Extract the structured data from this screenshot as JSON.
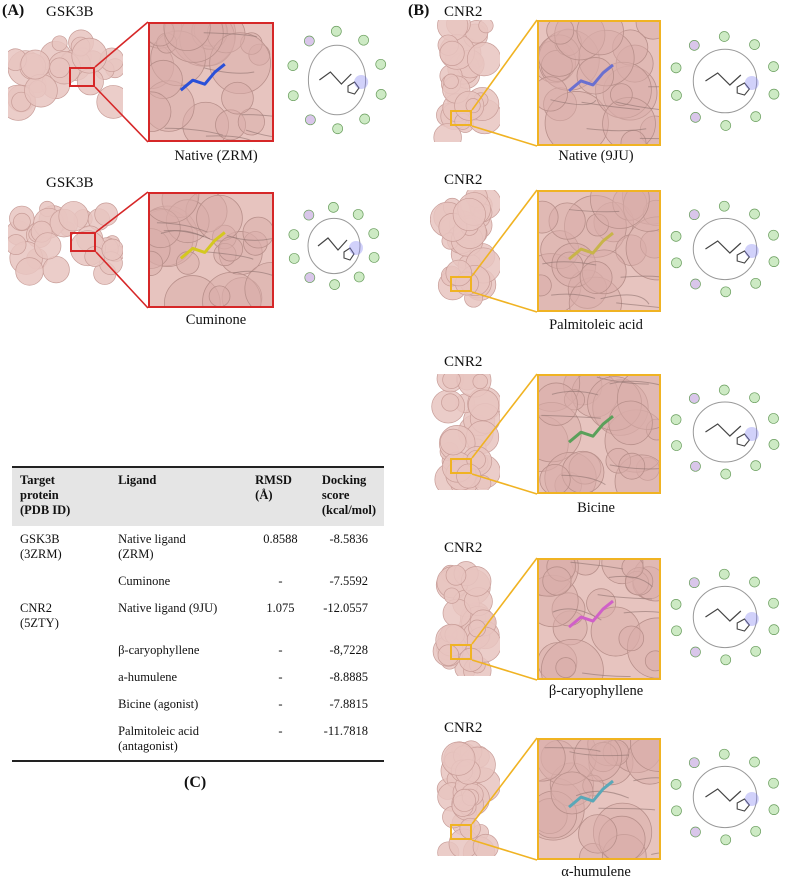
{
  "panels": {
    "A": {
      "label": "(A)",
      "items": [
        {
          "protein": "GSK3B",
          "caption": "Native (ZRM)"
        },
        {
          "protein": "GSK3B",
          "caption": "Cuminone"
        }
      ]
    },
    "B": {
      "label": "(B)",
      "items": [
        {
          "protein": "CNR2",
          "caption": "Native (9JU)"
        },
        {
          "protein": "CNR2",
          "caption": "Palmitoleic acid"
        },
        {
          "protein": "CNR2",
          "caption": "Bicine"
        },
        {
          "protein": "CNR2",
          "caption": "β-caryophyllene"
        },
        {
          "protein": "CNR2",
          "caption": "α-humulene"
        }
      ]
    },
    "C": {
      "label": "(C)"
    }
  },
  "table": {
    "headers": [
      "Target protein (PDB ID)",
      "Ligand",
      "RMSD (Å)",
      "Docking score (kcal/mol)"
    ],
    "header_lines": [
      [
        "Target",
        "protein",
        "(PDB ID)"
      ],
      [
        "Ligand"
      ],
      [
        "RMSD",
        "(Å)"
      ],
      [
        "Docking score",
        "(kcal/mol)"
      ]
    ],
    "rows": [
      {
        "target": "GSK3B (3ZRM)",
        "target_lines": [
          "GSK3B",
          "(3ZRM)"
        ],
        "ligand_lines": [
          "Native ligand",
          "(ZRM)"
        ],
        "rmsd": "0.8588",
        "score": "-8.5836"
      },
      {
        "target_lines": [],
        "ligand_lines": [
          "Cuminone"
        ],
        "rmsd": "-",
        "score": "-7.5592"
      },
      {
        "target_lines": [
          "CNR2",
          "(5ZTY)"
        ],
        "ligand_lines": [
          "Native ligand (9JU)"
        ],
        "rmsd": "1.075",
        "score": "-12.0557"
      },
      {
        "target_lines": [],
        "ligand_lines": [
          "β-caryophyllene"
        ],
        "rmsd": "-",
        "score": "-8,7228"
      },
      {
        "target_lines": [],
        "ligand_lines": [
          "a-humulene"
        ],
        "rmsd": "-",
        "score": "-8.8885"
      },
      {
        "target_lines": [],
        "ligand_lines": [
          "Bicine (agonist)"
        ],
        "rmsd": "-",
        "score": "-7.8815"
      },
      {
        "target_lines": [],
        "ligand_lines": [
          "Palmitoleic acid",
          "(antagonist)"
        ],
        "rmsd": "-",
        "score": "-11.7818"
      }
    ]
  },
  "colors": {
    "panel_a_frame": "#d62728",
    "panel_b_frame": "#f0b323",
    "surface": "#e7c4bf",
    "surface_dark": "#c89d98"
  }
}
